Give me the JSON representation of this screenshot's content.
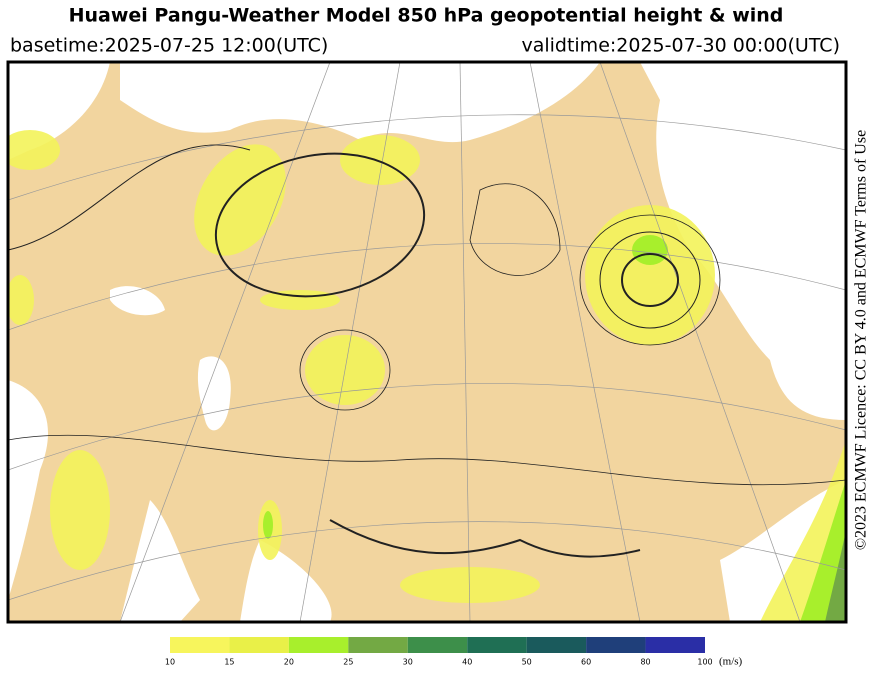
{
  "header": {
    "title": "Huawei Pangu-Weather Model 850 hPa geopotential height & wind",
    "basetime": "basetime:2025-07-25 12:00(UTC)",
    "validtime": "validtime:2025-07-30 00:00(UTC)"
  },
  "licence": "©2023 ECMWF Licence: CC BY 4.0 and ECMWF Terms of Use",
  "colorbar": {
    "ticks": [
      10,
      15,
      20,
      25,
      30,
      40,
      50,
      60,
      80,
      100
    ],
    "colors": [
      "#f7f55c",
      "#e9f048",
      "#a8ef2c",
      "#73a944",
      "#3d8f4a",
      "#1f6f54",
      "#1a5a5c",
      "#1f3f7a",
      "#2a2ea6"
    ],
    "unit": "(m/s)"
  }
}
